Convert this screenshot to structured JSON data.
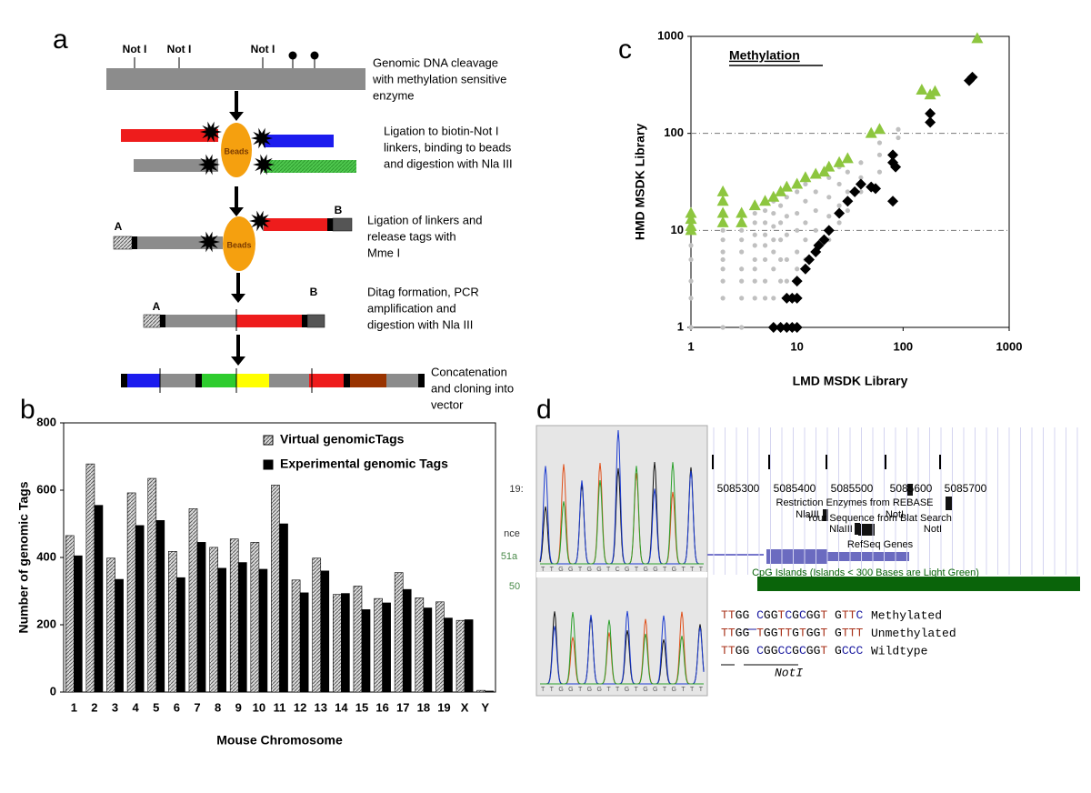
{
  "panel_labels": [
    "a",
    "b",
    "c",
    "d"
  ],
  "diagram": {
    "enzyme_sites": [
      "Not I",
      "Not I",
      "Not I"
    ],
    "beads": [
      "Beads",
      "Beads"
    ],
    "linker_labels": [
      "A",
      "B",
      "A",
      "B"
    ],
    "steps": [
      [
        "Genomic DNA cleavage",
        "with methylation sensitive",
        "enzyme"
      ],
      [
        "Ligation to biotin-Not I",
        "linkers, binding to beads",
        "and digestion with Nla III"
      ],
      [
        "Ligation of linkers and",
        "release tags with",
        "Mme I"
      ],
      [
        "Ditag formation, PCR",
        "amplification and",
        "digestion with Nla III"
      ],
      [
        "Concatenation",
        "and cloning into",
        "vector"
      ]
    ]
  },
  "chart_data": [
    {
      "type": "bar",
      "x_label": "Mouse Chromosome",
      "y_label": "Number of genomic Tags",
      "categories": [
        "1",
        "2",
        "3",
        "4",
        "5",
        "6",
        "7",
        "8",
        "9",
        "10",
        "11",
        "12",
        "13",
        "14",
        "15",
        "16",
        "17",
        "18",
        "19",
        "X",
        "Y"
      ],
      "series": [
        {
          "name": "Virtual genomicTags",
          "color": "#bdbdbd",
          "values": [
            465,
            678,
            398,
            592,
            635,
            418,
            545,
            430,
            455,
            445,
            615,
            333,
            398,
            290,
            315,
            278,
            355,
            280,
            268,
            213,
            5
          ]
        },
        {
          "name": "Experimental genomic Tags",
          "color": "#000000",
          "values": [
            405,
            555,
            335,
            495,
            510,
            340,
            445,
            368,
            385,
            365,
            500,
            295,
            360,
            293,
            245,
            265,
            305,
            250,
            220,
            215,
            3
          ]
        }
      ],
      "ylim": [
        0,
        800
      ],
      "yticks": [
        0,
        200,
        400,
        600,
        800
      ],
      "legend": "top-right"
    },
    {
      "type": "scatter",
      "title": "Methylation",
      "x_label": "LMD MSDK Library",
      "y_label": "HMD MSDK Library",
      "log_scale": true,
      "xlim": [
        1,
        1000
      ],
      "ylim": [
        1,
        1000
      ],
      "xticks": [
        1,
        10,
        100,
        1000
      ],
      "yticks": [
        1,
        10,
        100,
        1000
      ],
      "grid": true,
      "series": [
        {
          "color": "#c0c0c0",
          "marker": "circle",
          "x": [
            1,
            1,
            1,
            1,
            1,
            2,
            2,
            2,
            2,
            2,
            2,
            2,
            2,
            3,
            3,
            3,
            3,
            3,
            3,
            3,
            3,
            4,
            4,
            4,
            4,
            4,
            4,
            4,
            4,
            5,
            5,
            5,
            5,
            5,
            5,
            5,
            6,
            6,
            6,
            6,
            6,
            6,
            6,
            7,
            7,
            7,
            7,
            7,
            8,
            8,
            8,
            8,
            8,
            10,
            10,
            10,
            10,
            10,
            12,
            12,
            12,
            12,
            12,
            15,
            15,
            15,
            15,
            20,
            20,
            20,
            20,
            25,
            25,
            25,
            25,
            30,
            30,
            30,
            40,
            40,
            40,
            60,
            60,
            60,
            90,
            90
          ],
          "values": [
            1,
            2,
            3,
            5,
            7,
            1,
            2,
            3,
            4,
            5,
            6,
            8,
            10,
            1,
            2,
            3,
            4,
            6,
            8,
            10,
            12,
            2,
            3,
            4,
            5,
            7,
            9,
            12,
            15,
            2,
            3,
            5,
            7,
            9,
            12,
            16,
            2,
            4,
            6,
            8,
            11,
            15,
            20,
            3,
            5,
            8,
            12,
            18,
            3,
            5,
            9,
            14,
            22,
            4,
            6,
            10,
            15,
            25,
            5,
            8,
            12,
            20,
            30,
            6,
            10,
            16,
            25,
            8,
            14,
            22,
            35,
            12,
            18,
            30,
            45,
            16,
            25,
            40,
            25,
            35,
            50,
            40,
            60,
            80,
            90,
            110
          ]
        },
        {
          "color": "#8dc63f",
          "marker": "triangle",
          "x": [
            1,
            1,
            1,
            1,
            2,
            2,
            2,
            2,
            3,
            3,
            4,
            5,
            6,
            7,
            8,
            10,
            12,
            15,
            18,
            20,
            25,
            30,
            50,
            60,
            150,
            180,
            200,
            500
          ],
          "values": [
            15,
            13,
            11,
            10,
            25,
            20,
            15,
            12,
            15,
            12,
            18,
            20,
            22,
            25,
            28,
            30,
            35,
            38,
            40,
            45,
            50,
            55,
            100,
            110,
            280,
            250,
            270,
            950
          ]
        },
        {
          "color": "#000000",
          "marker": "diamond",
          "x": [
            6,
            7,
            8,
            9,
            10,
            8,
            9,
            10,
            10,
            12,
            13,
            15,
            16,
            18,
            20,
            25,
            30,
            35,
            40,
            50,
            55,
            80,
            80,
            85,
            80,
            180,
            180,
            450,
            420
          ],
          "values": [
            1,
            1,
            1,
            1,
            1,
            2,
            2,
            2,
            3,
            4,
            5,
            6,
            7,
            8,
            10,
            15,
            20,
            25,
            30,
            28,
            27,
            60,
            50,
            45,
            20,
            160,
            130,
            380,
            350
          ]
        }
      ]
    }
  ],
  "browser": {
    "positions": [
      "5085300",
      "5085400",
      "5085500",
      "5085600",
      "5085700"
    ],
    "tracks": {
      "rebase": "Restriction Enzymes from REBASE",
      "enzymes": [
        "NlaIII",
        "NotI",
        "NlaIII",
        "NotI"
      ],
      "blat": "Your Sequence from Blat Search",
      "refseq": "RefSeq Genes",
      "cpg": "CpG Islands (Islands < 300 Bases are Light Green)"
    },
    "fragments": [
      "19:",
      "nce",
      "51a",
      "50"
    ],
    "trace_bases": [
      "TTGGTGGTCGTGGTGTTT",
      "TTGGTGGTTGTGGTGTTT"
    ],
    "sequences": [
      {
        "seq": "TTGG CGGTCGCGGT GTTC",
        "label": "Methylated"
      },
      {
        "seq": "TTGG TGGTTGTGGT GTTT",
        "label": "Unmethylated"
      },
      {
        "seq": "TTGG CGGCCGCGGT GCCC",
        "label": "Wildtype"
      }
    ],
    "site_label": "NotI"
  }
}
